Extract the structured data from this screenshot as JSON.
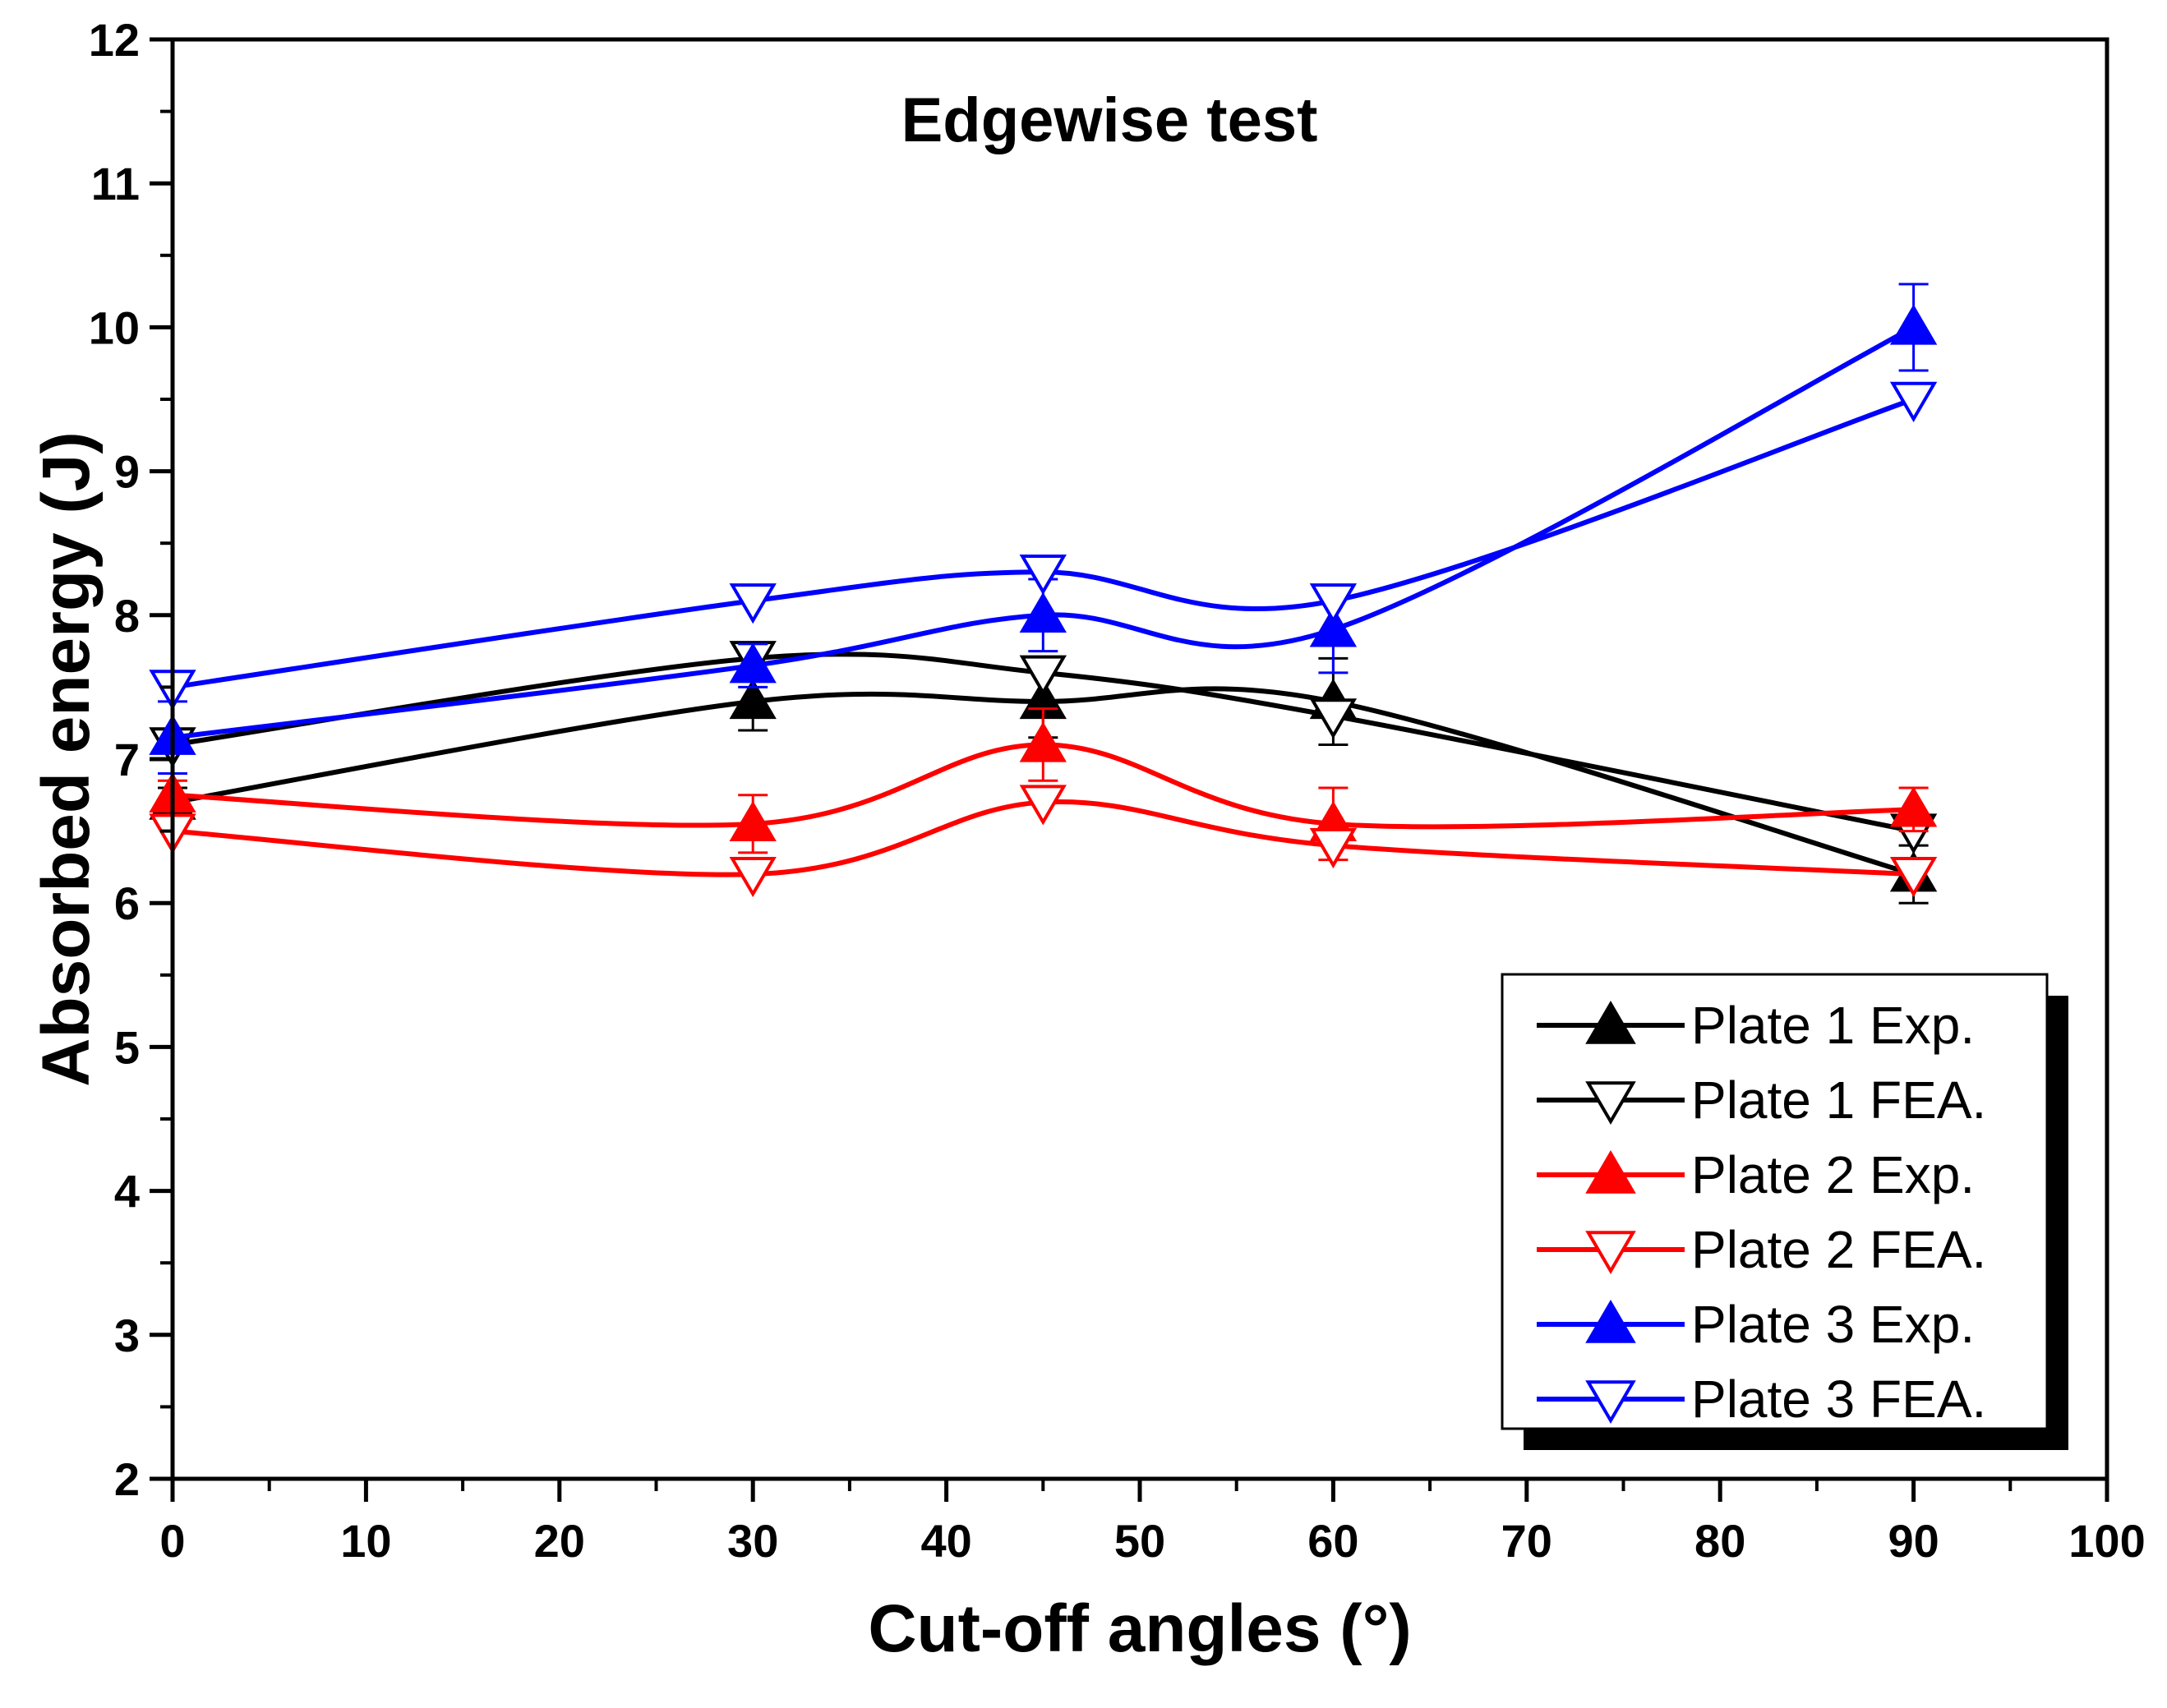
{
  "chart_data": {
    "type": "line",
    "title": "Edgewise test",
    "xlabel": "Cut-off angles (°)",
    "ylabel": "Absorbed energy (J)",
    "xlim": [
      0,
      100
    ],
    "ylim": [
      2,
      12
    ],
    "x_ticks": [
      0,
      10,
      20,
      30,
      40,
      50,
      60,
      70,
      80,
      90,
      100
    ],
    "y_ticks": [
      2,
      3,
      4,
      5,
      6,
      7,
      8,
      9,
      10,
      11,
      12
    ],
    "x": [
      0,
      30,
      45,
      60,
      90
    ],
    "legend_position": "bottom-right",
    "series": [
      {
        "name": "Plate 1 Exp.",
        "color": "#000000",
        "marker": "triangle-up-filled",
        "values": [
          6.7,
          7.4,
          7.4,
          7.4,
          6.2
        ],
        "errors": [
          0.1,
          0.2,
          0.25,
          0.3,
          0.2
        ]
      },
      {
        "name": "Plate 1 FEA.",
        "color": "#000000",
        "marker": "triangle-down-open",
        "values": [
          7.1,
          7.7,
          7.6,
          7.3,
          6.5
        ],
        "errors": null
      },
      {
        "name": "Plate 2 Exp.",
        "color": "#ff0000",
        "marker": "triangle-up-filled",
        "values": [
          6.75,
          6.55,
          7.1,
          6.55,
          6.65
        ],
        "errors": [
          0.1,
          0.2,
          0.25,
          0.25,
          0.15
        ]
      },
      {
        "name": "Plate 2 FEA.",
        "color": "#ff0000",
        "marker": "triangle-down-open",
        "values": [
          6.5,
          6.2,
          6.7,
          6.4,
          6.2
        ],
        "errors": null
      },
      {
        "name": "Plate 3 Exp.",
        "color": "#0000ff",
        "marker": "triangle-up-filled",
        "values": [
          7.15,
          7.65,
          8.0,
          7.9,
          10.0
        ],
        "errors": [
          0.25,
          0.15,
          0.25,
          0.3,
          0.3
        ]
      },
      {
        "name": "Plate 3 FEA.",
        "color": "#0000ff",
        "marker": "triangle-down-open",
        "values": [
          7.5,
          8.1,
          8.3,
          8.1,
          9.5
        ],
        "errors": null
      }
    ]
  }
}
